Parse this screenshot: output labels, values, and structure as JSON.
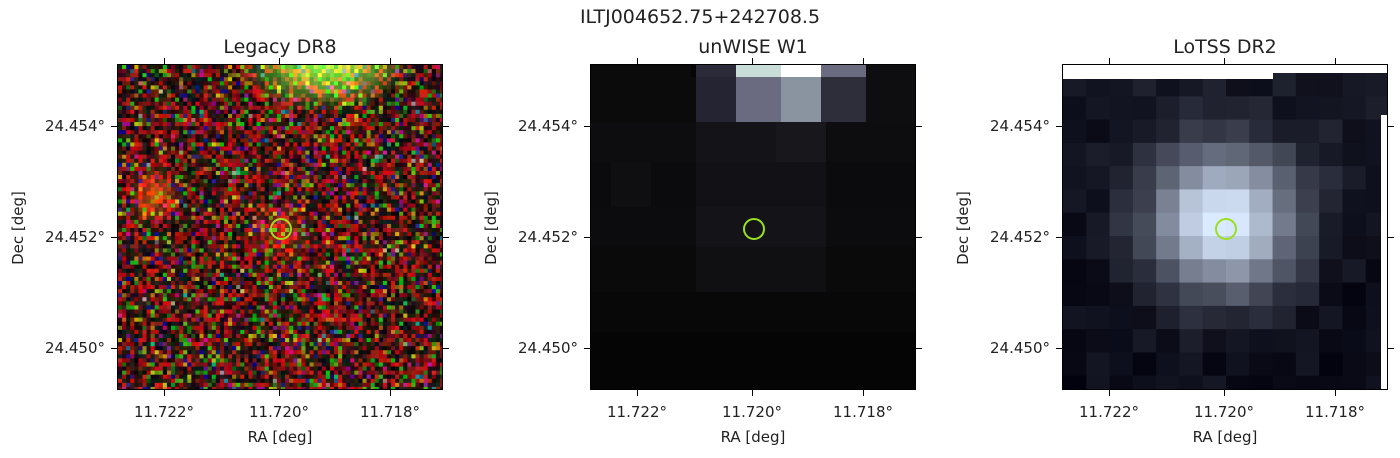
{
  "suptitle": "ILTJ004652.75+242708.5",
  "panels": [
    {
      "title": "Legacy DR8",
      "xlabel": "RA [deg]",
      "ylabel": "Dec [deg]",
      "xticks": [
        "11.722°",
        "11.720°",
        "11.718°"
      ],
      "yticks": [
        "24.454°",
        "24.452°",
        "24.450°"
      ]
    },
    {
      "title": "unWISE W1",
      "xlabel": "RA [deg]",
      "ylabel": "Dec [deg]",
      "xticks": [
        "11.722°",
        "11.720°",
        "11.718°"
      ],
      "yticks": [
        "24.454°",
        "24.452°",
        "24.450°"
      ]
    },
    {
      "title": "LoTSS DR2",
      "xlabel": "RA [deg]",
      "ylabel": "Dec [deg]",
      "xticks": [
        "11.722°",
        "11.720°",
        "11.718°"
      ],
      "yticks": [
        "24.454°",
        "24.452°",
        "24.450°"
      ]
    }
  ],
  "colors": {
    "marker": "#9ae01f"
  }
}
